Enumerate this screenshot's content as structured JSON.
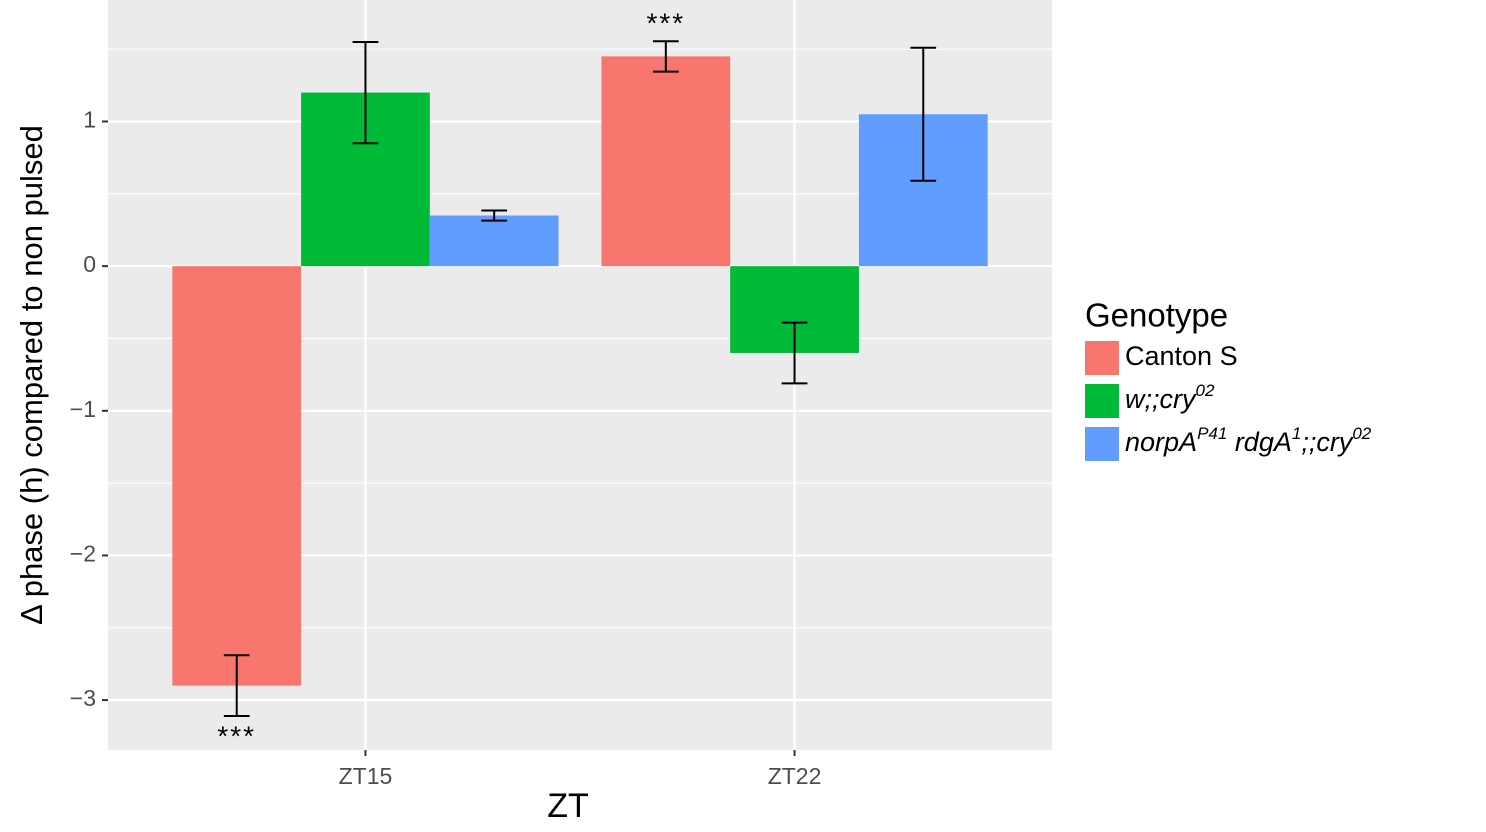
{
  "chart_data": {
    "type": "bar",
    "x_label": "ZT",
    "y_label": "Δ phase (h) compared to non pulsed",
    "legend_title": "Genotype",
    "categories": [
      "ZT15",
      "ZT22"
    ],
    "series": [
      {
        "name": [
          {
            "text": "Canton S",
            "italic": false,
            "sup": false
          }
        ],
        "color": "#f8766d",
        "values": [
          -2.9,
          1.45
        ],
        "errors": [
          0.21,
          0.105
        ],
        "annotations": [
          "***",
          "***"
        ]
      },
      {
        "name": [
          {
            "text": "w;;cry",
            "italic": true,
            "sup": false
          },
          {
            "text": "02",
            "italic": true,
            "sup": true
          }
        ],
        "color": "#00ba38",
        "values": [
          1.2,
          -0.6
        ],
        "errors": [
          0.35,
          0.21
        ]
      },
      {
        "name": [
          {
            "text": "norpA",
            "italic": true,
            "sup": false
          },
          {
            "text": "P41",
            "italic": true,
            "sup": true
          },
          {
            "text": " rdgA",
            "italic": true,
            "sup": false
          },
          {
            "text": "1",
            "italic": true,
            "sup": true
          },
          {
            "text": ";;cry",
            "italic": true,
            "sup": false
          },
          {
            "text": "02",
            "italic": true,
            "sup": true
          }
        ],
        "color": "#619cff",
        "values": [
          0.35,
          1.05
        ],
        "errors": [
          0.035,
          0.46
        ]
      }
    ],
    "ylim": [
      -3.345,
      1.84
    ],
    "yticks": [
      {
        "value": -3,
        "label": "−3"
      },
      {
        "value": -2,
        "label": "−2"
      },
      {
        "value": -1,
        "label": "−1"
      },
      0,
      1
    ],
    "grid": true,
    "legend_position": "right"
  }
}
